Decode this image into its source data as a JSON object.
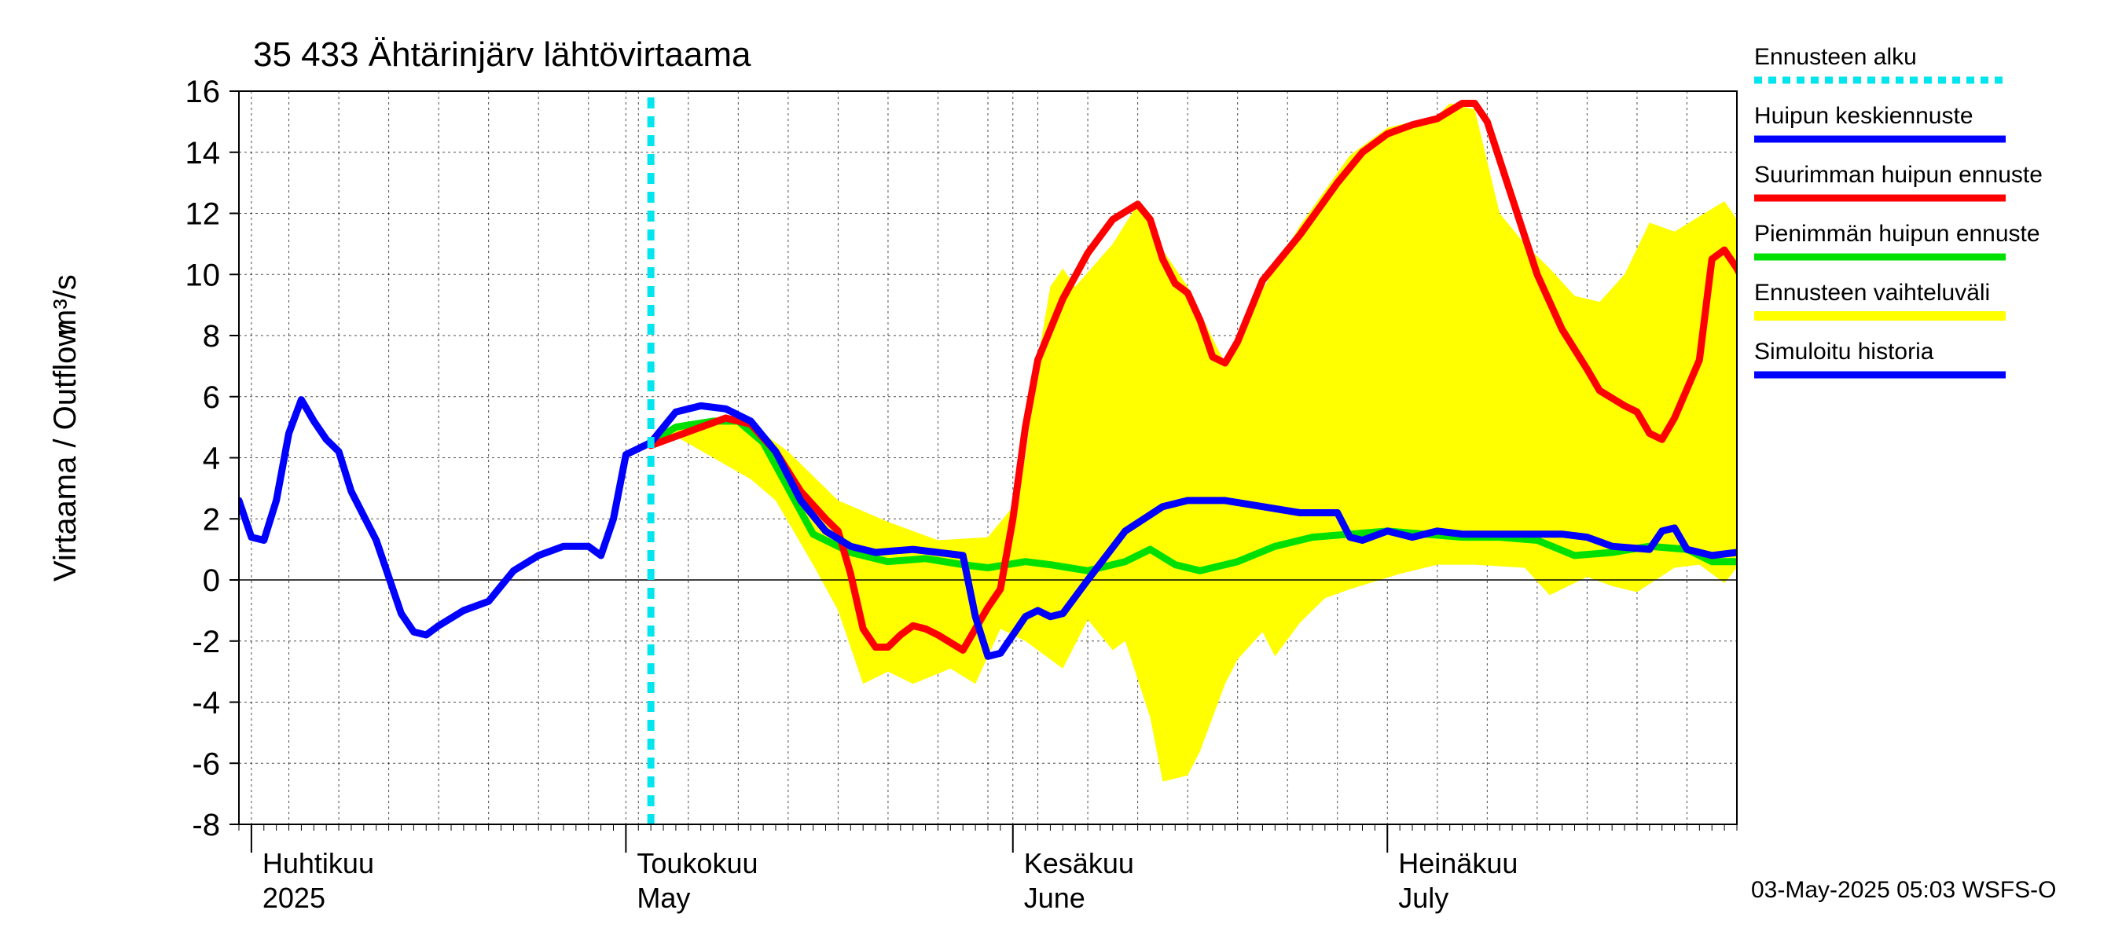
{
  "chart_data": {
    "type": "line",
    "title": "35 433 Ähtärinjärv lähtövirtaama",
    "ylabel": "Virtaama / Outflow",
    "yunit": "m³/s",
    "ylim": [
      -8,
      16
    ],
    "yticks": [
      -8,
      -6,
      -4,
      -2,
      0,
      2,
      4,
      6,
      8,
      10,
      12,
      14,
      16
    ],
    "xlim": [
      "2025-03-31",
      "2025-07-29"
    ],
    "grid": true,
    "legend_position": "right",
    "months": [
      {
        "fi": "Huhtikuu",
        "en": "2025",
        "date": "2025-04-01"
      },
      {
        "fi": "Toukokuu",
        "en": "May",
        "date": "2025-05-01"
      },
      {
        "fi": "Kesäkuu",
        "en": "June",
        "date": "2025-06-01"
      },
      {
        "fi": "Heinäkuu",
        "en": "July",
        "date": "2025-07-01"
      }
    ],
    "forecast_start": "2025-05-03",
    "legend": [
      {
        "key": "forecast_start",
        "label": "Ennusteen alku",
        "color": "#00e5ee",
        "dashed": true
      },
      {
        "key": "mean",
        "label": "Huipun keskiennuste",
        "color": "#0000ff"
      },
      {
        "key": "max",
        "label": "Suurimman huipun ennuste",
        "color": "#ff0000"
      },
      {
        "key": "min",
        "label": "Pienimmän huipun ennuste",
        "color": "#00e000"
      },
      {
        "key": "range",
        "label": "Ennusteen vaihteluväli",
        "color": "#ffff00"
      },
      {
        "key": "history",
        "label": "Simuloitu historia",
        "color": "#0000ff"
      }
    ],
    "series": [
      {
        "name": "Ennusteen vaihteluväli",
        "key": "range_upper",
        "color": "#ffff00",
        "points": [
          [
            "2025-05-03",
            4.6
          ],
          [
            "2025-05-05",
            5.1
          ],
          [
            "2025-05-09",
            5.2
          ],
          [
            "2025-05-12",
            4.8
          ],
          [
            "2025-05-14",
            4.2
          ],
          [
            "2025-05-18",
            2.6
          ],
          [
            "2025-05-22",
            1.9
          ],
          [
            "2025-05-26",
            1.3
          ],
          [
            "2025-05-30",
            1.4
          ],
          [
            "2025-06-01",
            2.4
          ],
          [
            "2025-06-02",
            4.0
          ],
          [
            "2025-06-03",
            7.2
          ],
          [
            "2025-06-04",
            9.6
          ],
          [
            "2025-06-05",
            10.2
          ],
          [
            "2025-06-06",
            9.6
          ],
          [
            "2025-06-09",
            11.0
          ],
          [
            "2025-06-11",
            12.3
          ],
          [
            "2025-06-13",
            10.8
          ],
          [
            "2025-06-15",
            9.6
          ],
          [
            "2025-06-17",
            7.9
          ],
          [
            "2025-06-18",
            7.1
          ],
          [
            "2025-06-20",
            8.8
          ],
          [
            "2025-06-24",
            11.6
          ],
          [
            "2025-06-28",
            13.9
          ],
          [
            "2025-07-01",
            14.8
          ],
          [
            "2025-07-03",
            15.0
          ],
          [
            "2025-07-05",
            15.2
          ],
          [
            "2025-07-06",
            15.6
          ],
          [
            "2025-07-08",
            15.4
          ],
          [
            "2025-07-10",
            12.0
          ],
          [
            "2025-07-12",
            11.0
          ],
          [
            "2025-07-14",
            10.2
          ],
          [
            "2025-07-16",
            9.3
          ],
          [
            "2025-07-18",
            9.1
          ],
          [
            "2025-07-20",
            10.0
          ],
          [
            "2025-07-22",
            11.7
          ],
          [
            "2025-07-24",
            11.4
          ],
          [
            "2025-07-26",
            11.9
          ],
          [
            "2025-07-28",
            12.4
          ],
          [
            "2025-07-29",
            11.8
          ]
        ]
      },
      {
        "name": "Ennusteen vaihteluväli",
        "key": "range_lower",
        "color": "#ffff00",
        "points": [
          [
            "2025-05-03",
            4.4
          ],
          [
            "2025-05-05",
            4.7
          ],
          [
            "2025-05-08",
            4.0
          ],
          [
            "2025-05-11",
            3.3
          ],
          [
            "2025-05-13",
            2.6
          ],
          [
            "2025-05-16",
            0.5
          ],
          [
            "2025-05-18",
            -1.0
          ],
          [
            "2025-05-20",
            -3.4
          ],
          [
            "2025-05-22",
            -3.0
          ],
          [
            "2025-05-24",
            -3.4
          ],
          [
            "2025-05-27",
            -2.9
          ],
          [
            "2025-05-29",
            -3.4
          ],
          [
            "2025-05-31",
            -1.6
          ],
          [
            "2025-06-02",
            -2.0
          ],
          [
            "2025-06-05",
            -2.9
          ],
          [
            "2025-06-07",
            -1.3
          ],
          [
            "2025-06-09",
            -2.3
          ],
          [
            "2025-06-10",
            -2.0
          ],
          [
            "2025-06-12",
            -4.5
          ],
          [
            "2025-06-13",
            -6.6
          ],
          [
            "2025-06-15",
            -6.4
          ],
          [
            "2025-06-16",
            -5.6
          ],
          [
            "2025-06-18",
            -3.4
          ],
          [
            "2025-06-19",
            -2.6
          ],
          [
            "2025-06-21",
            -1.7
          ],
          [
            "2025-06-22",
            -2.5
          ],
          [
            "2025-06-24",
            -1.4
          ],
          [
            "2025-06-26",
            -0.6
          ],
          [
            "2025-06-28",
            -0.3
          ],
          [
            "2025-07-02",
            0.2
          ],
          [
            "2025-07-05",
            0.5
          ],
          [
            "2025-07-08",
            0.5
          ],
          [
            "2025-07-12",
            0.4
          ],
          [
            "2025-07-14",
            -0.5
          ],
          [
            "2025-07-17",
            0.1
          ],
          [
            "2025-07-19",
            -0.2
          ],
          [
            "2025-07-21",
            -0.4
          ],
          [
            "2025-07-24",
            0.4
          ],
          [
            "2025-07-26",
            0.5
          ],
          [
            "2025-07-28",
            -0.1
          ],
          [
            "2025-07-29",
            0.4
          ]
        ]
      },
      {
        "name": "Suurimman huipun ennuste",
        "key": "max",
        "color": "#ff0000",
        "points": [
          [
            "2025-05-03",
            4.4
          ],
          [
            "2025-05-05",
            4.7
          ],
          [
            "2025-05-07",
            5.0
          ],
          [
            "2025-05-09",
            5.3
          ],
          [
            "2025-05-11",
            5.1
          ],
          [
            "2025-05-13",
            4.2
          ],
          [
            "2025-05-15",
            2.9
          ],
          [
            "2025-05-17",
            2.0
          ],
          [
            "2025-05-18",
            1.6
          ],
          [
            "2025-05-19",
            0.2
          ],
          [
            "2025-05-20",
            -1.6
          ],
          [
            "2025-05-21",
            -2.2
          ],
          [
            "2025-05-22",
            -2.2
          ],
          [
            "2025-05-23",
            -1.8
          ],
          [
            "2025-05-24",
            -1.5
          ],
          [
            "2025-05-25",
            -1.6
          ],
          [
            "2025-05-26",
            -1.8
          ],
          [
            "2025-05-28",
            -2.3
          ],
          [
            "2025-05-29",
            -1.6
          ],
          [
            "2025-05-30",
            -0.9
          ],
          [
            "2025-05-31",
            -0.3
          ],
          [
            "2025-06-01",
            2.0
          ],
          [
            "2025-06-02",
            5.0
          ],
          [
            "2025-06-03",
            7.2
          ],
          [
            "2025-06-05",
            9.2
          ],
          [
            "2025-06-07",
            10.7
          ],
          [
            "2025-06-09",
            11.8
          ],
          [
            "2025-06-11",
            12.3
          ],
          [
            "2025-06-12",
            11.8
          ],
          [
            "2025-06-13",
            10.5
          ],
          [
            "2025-06-14",
            9.7
          ],
          [
            "2025-06-15",
            9.4
          ],
          [
            "2025-06-16",
            8.5
          ],
          [
            "2025-06-17",
            7.3
          ],
          [
            "2025-06-18",
            7.1
          ],
          [
            "2025-06-19",
            7.8
          ],
          [
            "2025-06-21",
            9.8
          ],
          [
            "2025-06-24",
            11.3
          ],
          [
            "2025-06-27",
            13.0
          ],
          [
            "2025-06-29",
            14.0
          ],
          [
            "2025-07-01",
            14.6
          ],
          [
            "2025-07-03",
            14.9
          ],
          [
            "2025-07-05",
            15.1
          ],
          [
            "2025-07-07",
            15.6
          ],
          [
            "2025-07-08",
            15.6
          ],
          [
            "2025-07-09",
            15.0
          ],
          [
            "2025-07-11",
            12.5
          ],
          [
            "2025-07-13",
            10.0
          ],
          [
            "2025-07-15",
            8.2
          ],
          [
            "2025-07-17",
            6.9
          ],
          [
            "2025-07-18",
            6.2
          ],
          [
            "2025-07-20",
            5.7
          ],
          [
            "2025-07-21",
            5.5
          ],
          [
            "2025-07-22",
            4.8
          ],
          [
            "2025-07-23",
            4.6
          ],
          [
            "2025-07-24",
            5.3
          ],
          [
            "2025-07-26",
            7.2
          ],
          [
            "2025-07-27",
            10.5
          ],
          [
            "2025-07-28",
            10.8
          ],
          [
            "2025-07-29",
            10.2
          ],
          [
            "2025-07-31",
            8.6
          ]
        ]
      },
      {
        "name": "Pienimmän huipun ennuste",
        "key": "min",
        "color": "#00e000",
        "points": [
          [
            "2025-05-03",
            4.5
          ],
          [
            "2025-05-05",
            5.0
          ],
          [
            "2025-05-08",
            5.2
          ],
          [
            "2025-05-10",
            5.2
          ],
          [
            "2025-05-12",
            4.5
          ],
          [
            "2025-05-14",
            3.0
          ],
          [
            "2025-05-16",
            1.5
          ],
          [
            "2025-05-19",
            0.9
          ],
          [
            "2025-05-22",
            0.6
          ],
          [
            "2025-05-25",
            0.7
          ],
          [
            "2025-05-28",
            0.5
          ],
          [
            "2025-05-30",
            0.4
          ],
          [
            "2025-06-02",
            0.6
          ],
          [
            "2025-06-04",
            0.5
          ],
          [
            "2025-06-07",
            0.3
          ],
          [
            "2025-06-10",
            0.6
          ],
          [
            "2025-06-12",
            1.0
          ],
          [
            "2025-06-14",
            0.5
          ],
          [
            "2025-06-16",
            0.3
          ],
          [
            "2025-06-19",
            0.6
          ],
          [
            "2025-06-22",
            1.1
          ],
          [
            "2025-06-25",
            1.4
          ],
          [
            "2025-06-28",
            1.5
          ],
          [
            "2025-07-01",
            1.6
          ],
          [
            "2025-07-04",
            1.5
          ],
          [
            "2025-07-07",
            1.4
          ],
          [
            "2025-07-10",
            1.4
          ],
          [
            "2025-07-13",
            1.3
          ],
          [
            "2025-07-16",
            0.8
          ],
          [
            "2025-07-19",
            0.9
          ],
          [
            "2025-07-22",
            1.1
          ],
          [
            "2025-07-25",
            1.0
          ],
          [
            "2025-07-27",
            0.6
          ],
          [
            "2025-07-29",
            0.6
          ],
          [
            "2025-07-31",
            0.8
          ]
        ]
      },
      {
        "name": "Huipun keskiennuste",
        "key": "mean",
        "color": "#0000ff",
        "points": [
          [
            "2025-05-03",
            4.5
          ],
          [
            "2025-05-05",
            5.5
          ],
          [
            "2025-05-07",
            5.7
          ],
          [
            "2025-05-09",
            5.6
          ],
          [
            "2025-05-11",
            5.2
          ],
          [
            "2025-05-13",
            4.2
          ],
          [
            "2025-05-15",
            2.6
          ],
          [
            "2025-05-17",
            1.6
          ],
          [
            "2025-05-19",
            1.1
          ],
          [
            "2025-05-21",
            0.9
          ],
          [
            "2025-05-24",
            1.0
          ],
          [
            "2025-05-26",
            0.9
          ],
          [
            "2025-05-28",
            0.8
          ],
          [
            "2025-05-29",
            -1.2
          ],
          [
            "2025-05-30",
            -2.5
          ],
          [
            "2025-05-31",
            -2.4
          ],
          [
            "2025-06-02",
            -1.2
          ],
          [
            "2025-06-03",
            -1.0
          ],
          [
            "2025-06-04",
            -1.2
          ],
          [
            "2025-06-05",
            -1.1
          ],
          [
            "2025-06-07",
            0.0
          ],
          [
            "2025-06-10",
            1.6
          ],
          [
            "2025-06-13",
            2.4
          ],
          [
            "2025-06-15",
            2.6
          ],
          [
            "2025-06-18",
            2.6
          ],
          [
            "2025-06-21",
            2.4
          ],
          [
            "2025-06-24",
            2.2
          ],
          [
            "2025-06-27",
            2.2
          ],
          [
            "2025-06-28",
            1.4
          ],
          [
            "2025-06-29",
            1.3
          ],
          [
            "2025-07-01",
            1.6
          ],
          [
            "2025-07-03",
            1.4
          ],
          [
            "2025-07-05",
            1.6
          ],
          [
            "2025-07-07",
            1.5
          ],
          [
            "2025-07-10",
            1.5
          ],
          [
            "2025-07-13",
            1.5
          ],
          [
            "2025-07-15",
            1.5
          ],
          [
            "2025-07-17",
            1.4
          ],
          [
            "2025-07-19",
            1.1
          ],
          [
            "2025-07-22",
            1.0
          ],
          [
            "2025-07-23",
            1.6
          ],
          [
            "2025-07-24",
            1.7
          ],
          [
            "2025-07-25",
            1.0
          ],
          [
            "2025-07-27",
            0.8
          ],
          [
            "2025-07-29",
            0.9
          ],
          [
            "2025-07-31",
            1.1
          ]
        ]
      },
      {
        "name": "Simuloitu historia",
        "key": "history",
        "color": "#0000ff",
        "points": [
          [
            "2025-03-31",
            2.6
          ],
          [
            "2025-04-01",
            1.4
          ],
          [
            "2025-04-02",
            1.3
          ],
          [
            "2025-04-03",
            2.6
          ],
          [
            "2025-04-04",
            4.8
          ],
          [
            "2025-04-05",
            5.9
          ],
          [
            "2025-04-06",
            5.2
          ],
          [
            "2025-04-07",
            4.6
          ],
          [
            "2025-04-08",
            4.2
          ],
          [
            "2025-04-09",
            2.9
          ],
          [
            "2025-04-11",
            1.3
          ],
          [
            "2025-04-13",
            -1.1
          ],
          [
            "2025-04-14",
            -1.7
          ],
          [
            "2025-04-15",
            -1.8
          ],
          [
            "2025-04-16",
            -1.5
          ],
          [
            "2025-04-18",
            -1.0
          ],
          [
            "2025-04-20",
            -0.7
          ],
          [
            "2025-04-22",
            0.3
          ],
          [
            "2025-04-24",
            0.8
          ],
          [
            "2025-04-26",
            1.1
          ],
          [
            "2025-04-28",
            1.1
          ],
          [
            "2025-04-29",
            0.8
          ],
          [
            "2025-04-30",
            2.0
          ],
          [
            "2025-05-01",
            4.1
          ],
          [
            "2025-05-03",
            4.5
          ]
        ]
      }
    ]
  },
  "footer": "03-May-2025 05:03 WSFS-O"
}
